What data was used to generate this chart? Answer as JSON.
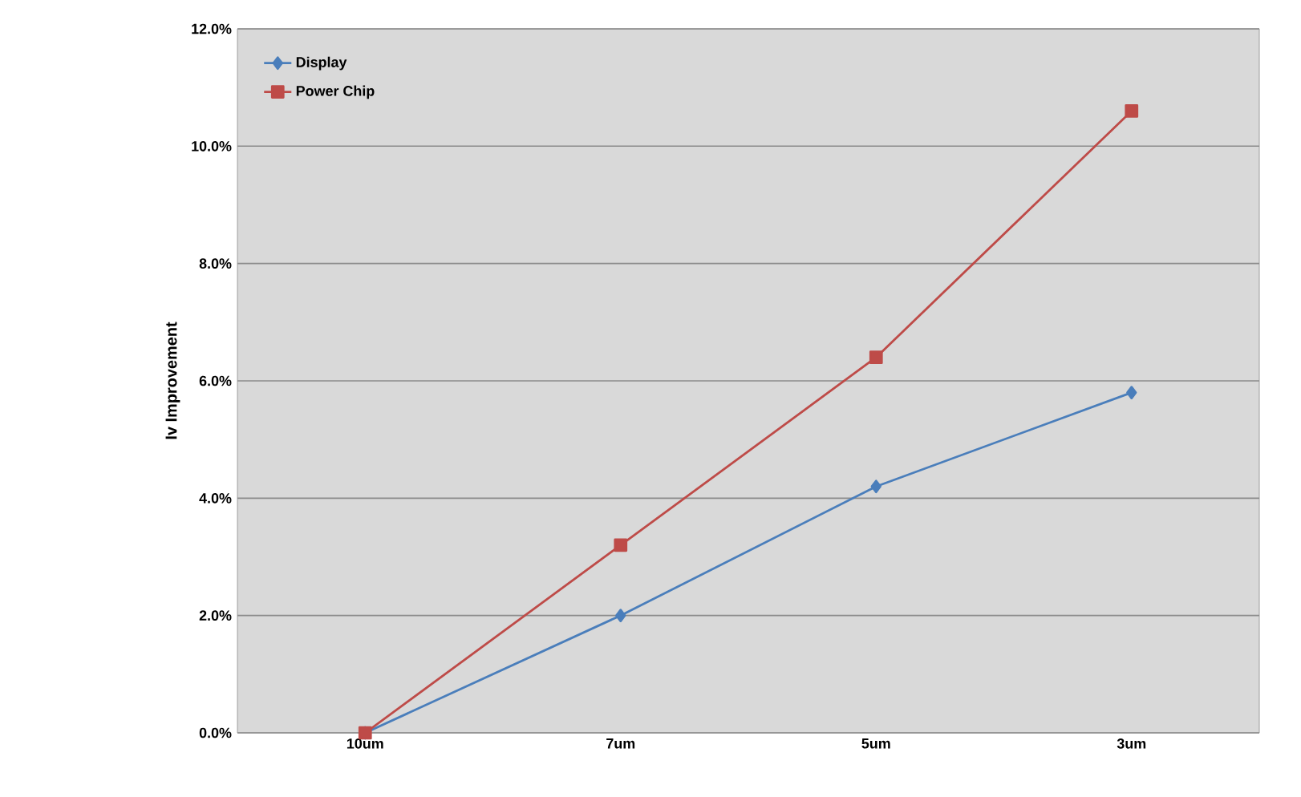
{
  "chart_data": {
    "type": "line",
    "ylabel": "Iv Improvement",
    "categories": [
      "10um",
      "7um",
      "5um",
      "3um"
    ],
    "series": [
      {
        "name": "Display",
        "color": "#4a7ebb",
        "marker": "diamond",
        "values": [
          0.0,
          2.0,
          4.2,
          5.8
        ]
      },
      {
        "name": "Power Chip",
        "color": "#be4b48",
        "marker": "square",
        "values": [
          0.0,
          3.2,
          6.4,
          10.6
        ]
      }
    ],
    "ylim": [
      0,
      12
    ],
    "yticks": [
      {
        "value": 0,
        "label": "0.0%"
      },
      {
        "value": 2,
        "label": "2.0%"
      },
      {
        "value": 4,
        "label": "4.0%"
      },
      {
        "value": 6,
        "label": "6.0%"
      },
      {
        "value": 8,
        "label": "8.0%"
      },
      {
        "value": 10,
        "label": "10.0%"
      },
      {
        "value": 12,
        "label": "12.0%"
      }
    ],
    "grid": "y",
    "legend": "top left",
    "line_style": "solid"
  }
}
